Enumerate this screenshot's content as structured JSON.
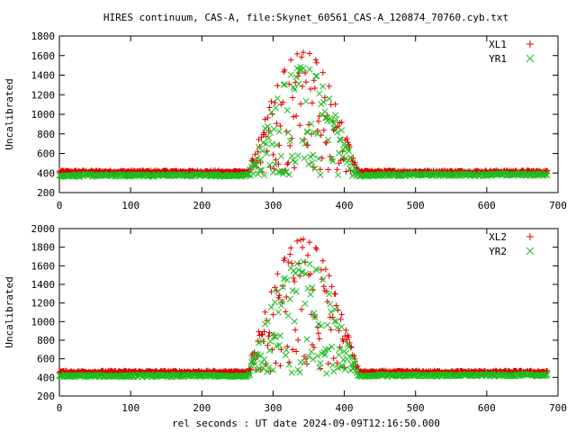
{
  "title": "HIRES continuum, CAS-A, file:Skynet_60561_CAS-A_120874_70760.cyb.txt",
  "xlabel": "rel seconds : UT date 2024-09-09T12:16:50.000",
  "colors": {
    "series_a": "#e00000",
    "series_b": "#1cbc1c"
  },
  "chart_data": [
    {
      "type": "scatter",
      "ylabel": "Uncalibrated",
      "xlim": [
        0,
        700
      ],
      "ylim": [
        200,
        1800
      ],
      "xticks": [
        0,
        100,
        200,
        300,
        400,
        500,
        600,
        700
      ],
      "yticks": [
        200,
        400,
        600,
        800,
        1000,
        1200,
        1400,
        1600,
        1800
      ],
      "grid": false,
      "legend_position": "top-right",
      "series": [
        {
          "name": "XL1",
          "marker": "+",
          "color": "#e00000",
          "baseline": 415,
          "drift": 0,
          "peak": 1640,
          "peak_center": 342,
          "peak_halfwidth": 78,
          "x_end": 685
        },
        {
          "name": "YR1",
          "marker": "x",
          "color": "#1cbc1c",
          "baseline": 375,
          "drift": 10,
          "peak": 1480,
          "peak_center": 342,
          "peak_halfwidth": 78,
          "x_end": 685
        }
      ]
    },
    {
      "type": "scatter",
      "ylabel": "Uncalibrated",
      "xlim": [
        0,
        700
      ],
      "ylim": [
        200,
        2000
      ],
      "xticks": [
        0,
        100,
        200,
        300,
        400,
        500,
        600,
        700
      ],
      "yticks": [
        200,
        400,
        600,
        800,
        1000,
        1200,
        1400,
        1600,
        1800,
        2000
      ],
      "grid": false,
      "legend_position": "top-right",
      "series": [
        {
          "name": "XL2",
          "marker": "+",
          "color": "#e00000",
          "baseline": 460,
          "drift": 0,
          "peak": 1890,
          "peak_center": 342,
          "peak_halfwidth": 80,
          "x_end": 685
        },
        {
          "name": "YR2",
          "marker": "x",
          "color": "#1cbc1c",
          "baseline": 415,
          "drift": 10,
          "peak": 1650,
          "peak_center": 342,
          "peak_halfwidth": 80,
          "x_end": 685
        }
      ]
    }
  ]
}
